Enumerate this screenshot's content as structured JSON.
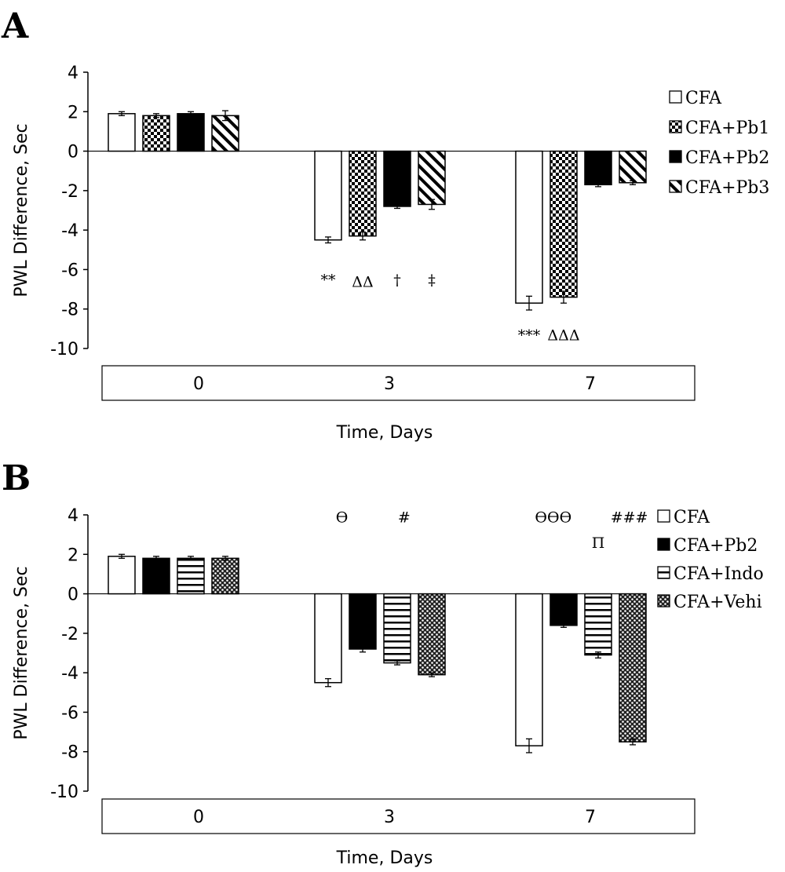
{
  "chart_data": [
    {
      "type": "bar",
      "panel_label": "A",
      "categories": [
        "0",
        "3",
        "7"
      ],
      "xlabel": "Time, Days",
      "ylabel": "PWL Difference, Sec",
      "ylim": [
        -10,
        4
      ],
      "yticks": [
        4,
        2,
        0,
        -2,
        -4,
        -6,
        -8,
        -10
      ],
      "grid": false,
      "legend": "right",
      "series": [
        {
          "name": "CFA",
          "pattern": "white",
          "values": [
            1.9,
            -4.5,
            -7.7
          ],
          "errors": [
            0.1,
            0.15,
            0.35
          ]
        },
        {
          "name": "CFA+Pb1",
          "pattern": "checker",
          "values": [
            1.8,
            -4.3,
            -7.4
          ],
          "errors": [
            0.1,
            0.2,
            0.3
          ]
        },
        {
          "name": "CFA+Pb2",
          "pattern": "black",
          "values": [
            1.9,
            -2.8,
            -1.7
          ],
          "errors": [
            0.1,
            0.1,
            0.1
          ]
        },
        {
          "name": "CFA+Pb3",
          "pattern": "diagonal",
          "values": [
            1.8,
            -2.7,
            -1.6
          ],
          "errors": [
            0.25,
            0.25,
            0.1
          ]
        }
      ],
      "annotations": [
        {
          "text": "**",
          "category": 1,
          "series": 0,
          "y": -6.5
        },
        {
          "text": "ΔΔ",
          "category": 1,
          "series": 1,
          "y": -6.6
        },
        {
          "text": "†",
          "category": 1,
          "series": 2,
          "y": -6.5
        },
        {
          "text": "‡",
          "category": 1,
          "series": 3,
          "y": -6.5
        },
        {
          "text": "***",
          "category": 2,
          "series": 0,
          "y": -9.3
        },
        {
          "text": "ΔΔΔ",
          "category": 2,
          "series": 1,
          "y": -9.3
        }
      ]
    },
    {
      "type": "bar",
      "panel_label": "B",
      "categories": [
        "0",
        "3",
        "7"
      ],
      "xlabel": "Time, Days",
      "ylabel": "PWL Difference, Sec",
      "ylim": [
        -10,
        4
      ],
      "yticks": [
        4,
        2,
        0,
        -2,
        -4,
        -6,
        -8,
        -10
      ],
      "grid": false,
      "legend": "right",
      "series": [
        {
          "name": "CFA",
          "pattern": "white",
          "values": [
            1.9,
            -4.5,
            -7.7
          ],
          "errors": [
            0.1,
            0.2,
            0.35
          ]
        },
        {
          "name": "CFA+Pb2",
          "pattern": "black",
          "values": [
            1.8,
            -2.8,
            -1.6
          ],
          "errors": [
            0.1,
            0.15,
            0.1
          ]
        },
        {
          "name": "CFA+Indo",
          "pattern": "horizontal",
          "values": [
            1.8,
            -3.5,
            -3.1
          ],
          "errors": [
            0.1,
            0.1,
            0.15
          ]
        },
        {
          "name": "CFA+Vehi",
          "pattern": "dots",
          "values": [
            1.8,
            -4.1,
            -7.5
          ],
          "errors": [
            0.1,
            0.1,
            0.15
          ]
        }
      ],
      "annotations": [
        {
          "text": "ϴ",
          "category": 1,
          "series": 0.4,
          "y": 3.9
        },
        {
          "text": "#",
          "category": 1,
          "series": 2.2,
          "y": 3.9
        },
        {
          "text": "ϴϴϴ",
          "category": 2,
          "series": 0.7,
          "y": 3.9
        },
        {
          "text": "###",
          "category": 2,
          "series": 2.9,
          "y": 3.9
        },
        {
          "text": "Π",
          "category": 2,
          "series": 2.0,
          "y": 2.6
        }
      ]
    }
  ]
}
